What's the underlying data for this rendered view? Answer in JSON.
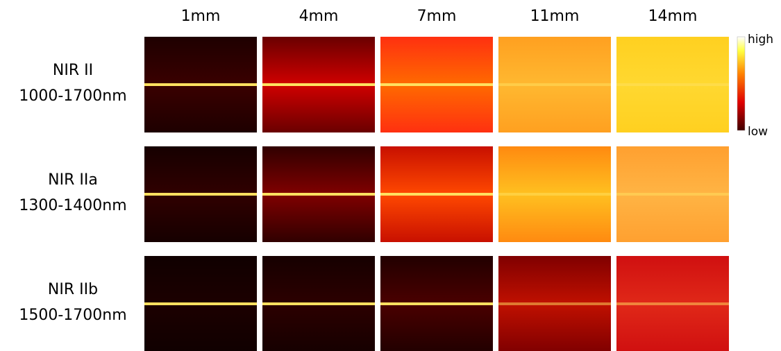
{
  "columns": [
    "1mm",
    "4mm",
    "7mm",
    "11mm",
    "14mm"
  ],
  "rows": [
    {
      "name": "NIR II",
      "range": "1000-1700nm"
    },
    {
      "name": "NIR IIa",
      "range": "1300-1400nm"
    },
    {
      "name": "NIR IIb",
      "range": "1500-1700nm"
    }
  ],
  "colorbar": {
    "high": "high",
    "low": "low"
  }
}
